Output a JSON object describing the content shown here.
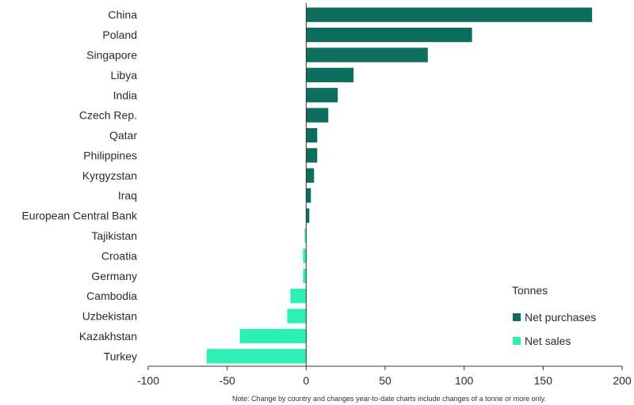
{
  "chart_data": {
    "type": "bar",
    "orientation": "horizontal",
    "categories": [
      "China",
      "Poland",
      "Singapore",
      "Libya",
      "India",
      "Czech Rep.",
      "Qatar",
      "Philippines",
      "Kyrgyzstan",
      "Iraq",
      "European Central Bank",
      "Tajikistan",
      "Croatia",
      "Germany",
      "Cambodia",
      "Uzbekistan",
      "Kazakhstan",
      "Turkey"
    ],
    "values": [
      181,
      105,
      77,
      30,
      20,
      14,
      7,
      7,
      5,
      3,
      2,
      -1,
      -2,
      -2,
      -10,
      -12,
      -42,
      -63
    ],
    "xlim": [
      -100,
      200
    ],
    "xticks": [
      -100,
      -50,
      0,
      50,
      100,
      150,
      200
    ],
    "xtick_labels": [
      "-100",
      "-50",
      "0",
      "50",
      "100",
      "150",
      "200"
    ],
    "grid": false,
    "legend": {
      "title": "Tonnes",
      "position": "bottom-right",
      "entries": [
        {
          "label": "Net purchases",
          "color": "#0d6e5e"
        },
        {
          "label": "Net sales",
          "color": "#2ef0b4"
        }
      ]
    },
    "colors": {
      "positive": "#0d6e5e",
      "negative": "#2ef0b4",
      "axis": "#333333"
    },
    "note": "Note: Change by country and changes year-to-date charts include changes of a tonne or more only."
  }
}
